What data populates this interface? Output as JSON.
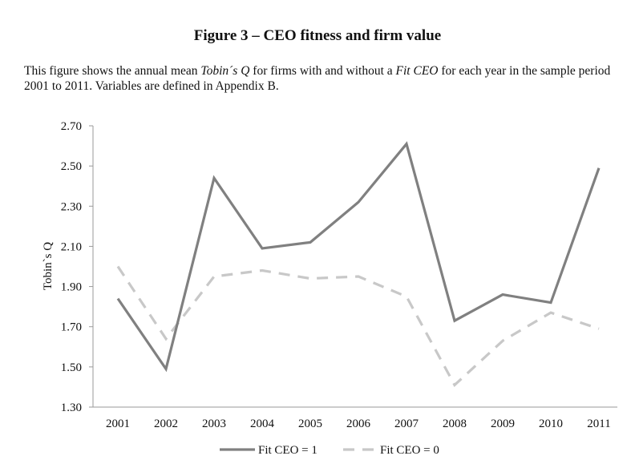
{
  "figure": {
    "title": "Figure 3 – CEO fitness and firm value",
    "caption_parts": [
      {
        "text": "This figure shows the annual mean ",
        "italic": false
      },
      {
        "text": "Tobin´s Q",
        "italic": true
      },
      {
        "text": " for firms with and without a ",
        "italic": false
      },
      {
        "text": "Fit CEO",
        "italic": true
      },
      {
        "text": " for each year in the sample period 2001 to 2011. Variables are defined in Appendix B.",
        "italic": false
      }
    ]
  },
  "chart_data": {
    "type": "line",
    "title": "Figure 3 – CEO fitness and firm value",
    "xlabel": "",
    "ylabel": "Tobin`s Q",
    "x": [
      "2001",
      "2002",
      "2003",
      "2004",
      "2005",
      "2006",
      "2007",
      "2008",
      "2009",
      "2010",
      "2011"
    ],
    "y_ticks": [
      "1.30",
      "1.50",
      "1.70",
      "1.90",
      "2.10",
      "2.30",
      "2.50",
      "2.70"
    ],
    "ylim": [
      1.3,
      2.7
    ],
    "grid": false,
    "legend": "bottom",
    "series": [
      {
        "name": "Fit CEO = 1",
        "color": "#808080",
        "style": "solid",
        "values": [
          1.84,
          1.49,
          2.44,
          2.09,
          2.12,
          2.32,
          2.61,
          1.73,
          1.86,
          1.82,
          2.49
        ]
      },
      {
        "name": "Fit CEO = 0",
        "color": "#c8c8c8",
        "style": "dashed",
        "values": [
          2.0,
          1.64,
          1.95,
          1.98,
          1.94,
          1.95,
          1.85,
          1.41,
          1.63,
          1.77,
          1.69
        ]
      }
    ]
  }
}
